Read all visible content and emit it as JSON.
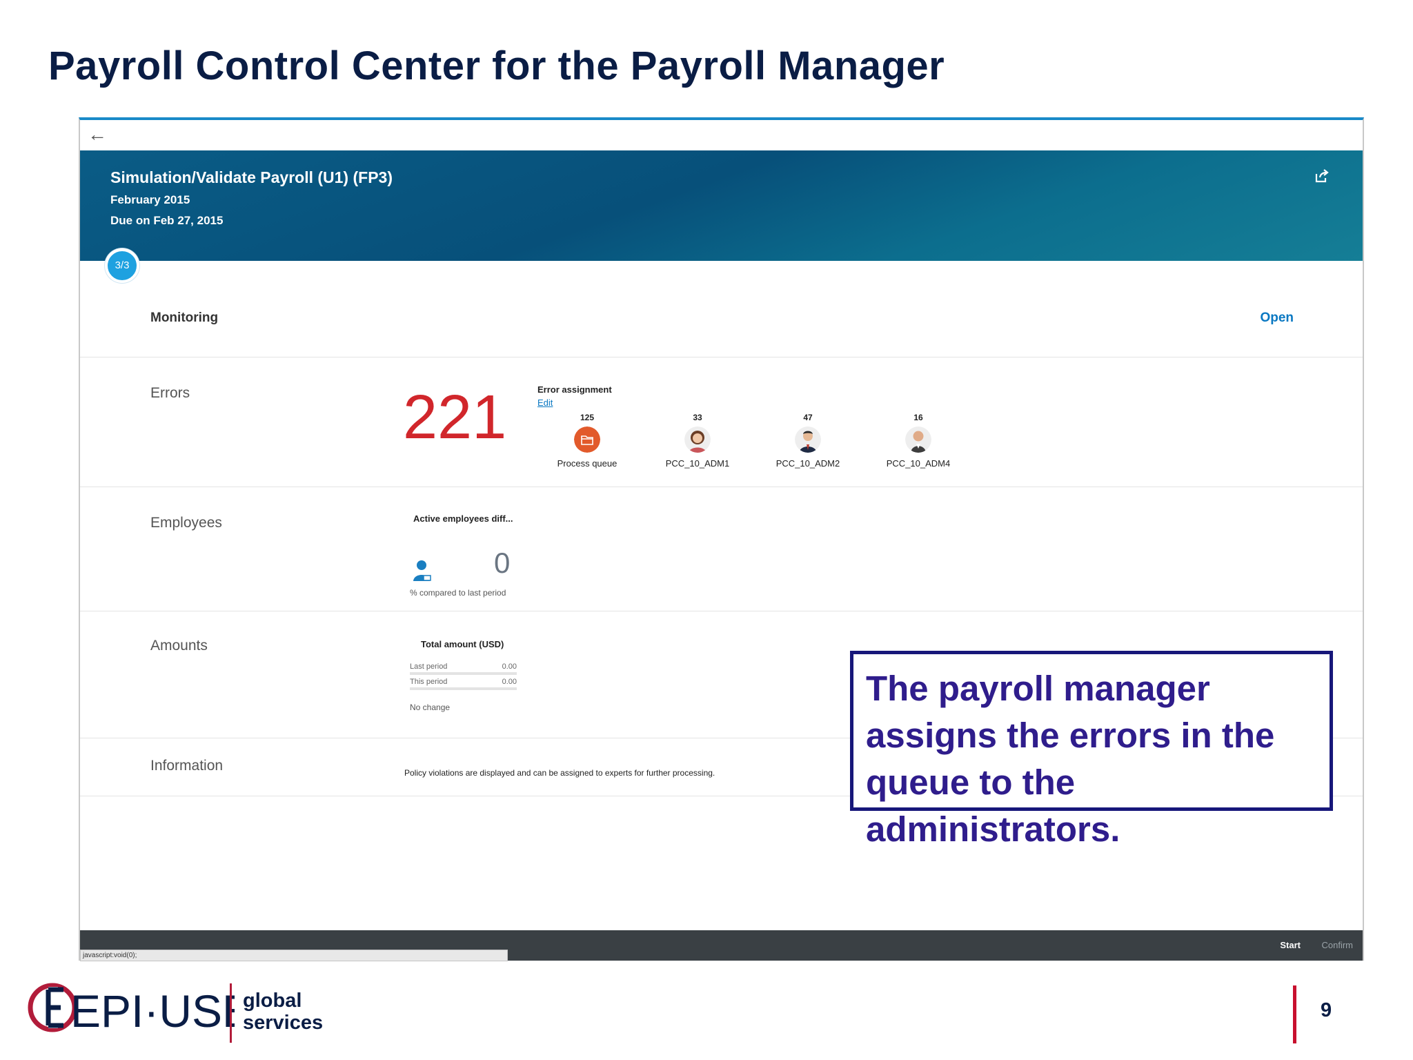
{
  "slide": {
    "title": "Payroll Control Center for the Payroll Manager",
    "page_number": "9"
  },
  "app": {
    "header": {
      "title": "Simulation/Validate Payroll (U1) (FP3)",
      "period": "February 2015",
      "due": "Due on Feb 27, 2015"
    },
    "step_badge": "3/3",
    "monitoring": {
      "label": "Monitoring",
      "open_label": "Open"
    },
    "rows": {
      "errors": {
        "label": "Errors",
        "count": "221",
        "assignment_title": "Error assignment",
        "edit_label": "Edit",
        "assignees": [
          {
            "count": "125",
            "name": "Process queue",
            "icon": "folder-icon"
          },
          {
            "count": "33",
            "name": "PCC_10_ADM1",
            "icon": "avatar-female"
          },
          {
            "count": "47",
            "name": "PCC_10_ADM2",
            "icon": "avatar-male"
          },
          {
            "count": "16",
            "name": "PCC_10_ADM4",
            "icon": "avatar-male-bald"
          }
        ]
      },
      "employees": {
        "label": "Employees",
        "title": "Active employees diff...",
        "value": "0",
        "comparison": "% compared to last period"
      },
      "amounts": {
        "label": "Amounts",
        "title": "Total amount (USD)",
        "last_period_label": "Last period",
        "last_period_value": "0.00",
        "this_period_label": "This period",
        "this_period_value": "0.00",
        "change_text": "No change"
      },
      "information": {
        "label": "Information",
        "text": "Policy violations are displayed and can be assigned to experts for further processing."
      }
    },
    "footer": {
      "start_label": "Start",
      "confirm_label": "Confirm",
      "status_url": "javascript:void(0);"
    }
  },
  "callout": {
    "text": "The payroll manager assigns the errors in the queue to the administrators."
  },
  "branding": {
    "logo_text": "EPI·USE",
    "logo_tagline_1": "global",
    "logo_tagline_2": "services"
  },
  "colors": {
    "title_navy": "#0a1d45",
    "header_teal": "#07507a",
    "error_red": "#d1262b",
    "link_blue": "#0a78c2",
    "badge_blue": "#1ea1e0",
    "callout_border": "#17177a",
    "callout_text": "#2f1d8c",
    "brand_red": "#c8102e"
  }
}
